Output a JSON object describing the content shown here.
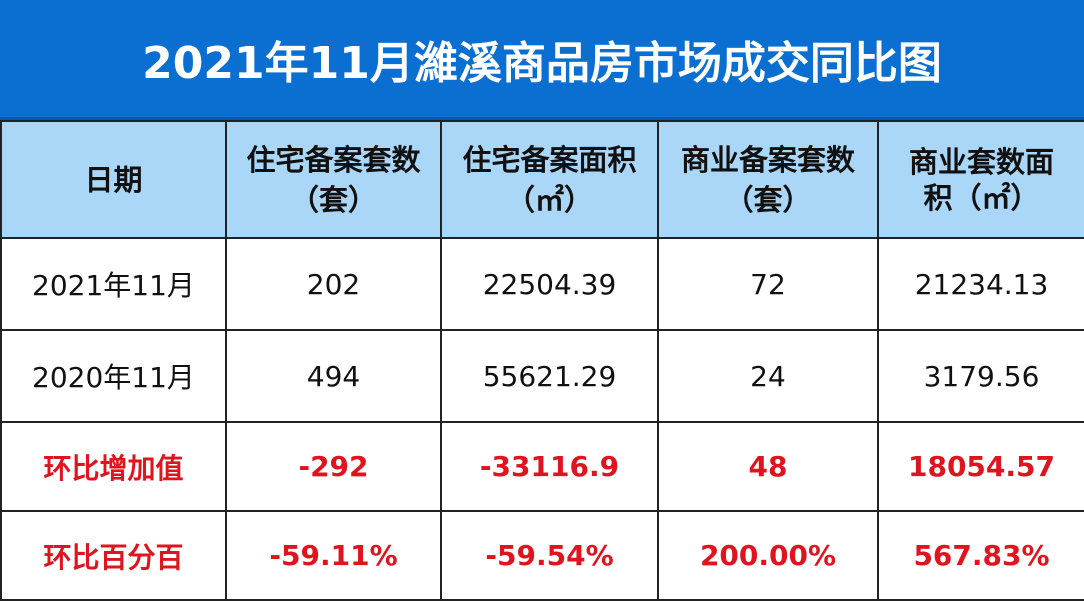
{
  "title": "2021年11月濰溪商品房市场成交同比图",
  "colors": {
    "title_bg": "#0a6fd0",
    "header_bg": "#aad6f7",
    "negative_text": "#e0141e"
  },
  "headers": [
    "日期",
    "住宅备案套数（套）",
    "住宅备案面积（㎡）",
    "商业备案套数（套）",
    "商业套数面积（㎡）"
  ],
  "headers_split": [
    [
      "日期",
      ""
    ],
    [
      "住宅备案套数",
      "（套）"
    ],
    [
      "住宅备案面积",
      "（㎡）"
    ],
    [
      "商业备案套数",
      "（套）"
    ],
    [
      "商业套数面",
      "积",
      "（㎡）"
    ]
  ],
  "rows": [
    [
      "2021年11月",
      "202",
      "22504.39",
      "72",
      "21234.13"
    ],
    [
      "2020年11月",
      "494",
      "55621.29",
      "24",
      "3179.56"
    ],
    [
      "环比增加值",
      "-292",
      "-33116.9",
      "48",
      "18054.57"
    ],
    [
      "环比百分百",
      "-59.11%",
      "-59.54%",
      "200.00%",
      "567.83%"
    ]
  ]
}
